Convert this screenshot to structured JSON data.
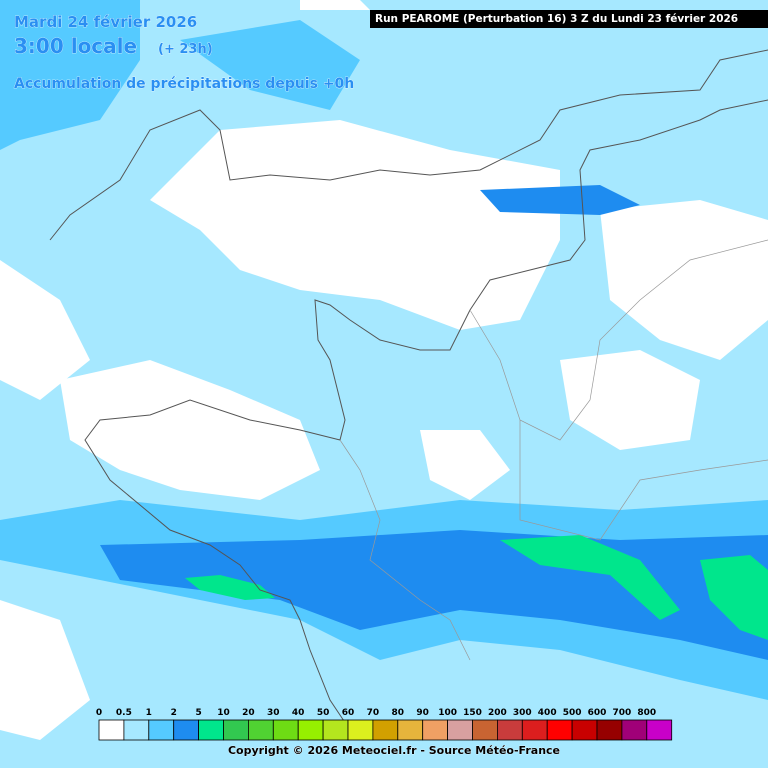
{
  "header": {
    "date": "Mardi 24 février 2026",
    "time": "3:00 locale",
    "offset": "(+ 23h)",
    "subtitle": "Accumulation de précipitations depuis +0h",
    "run": "Run PEAROME (Perturbation 16) 3 Z du Lundi 23 février 2026"
  },
  "legend": {
    "items": [
      {
        "label": "0",
        "color": "#ffffff"
      },
      {
        "label": "0.5",
        "color": "#a6e8ff"
      },
      {
        "label": "1",
        "color": "#55caff"
      },
      {
        "label": "2",
        "color": "#1e8cf0"
      },
      {
        "label": "5",
        "color": "#00e68c"
      },
      {
        "label": "10",
        "color": "#32c850"
      },
      {
        "label": "20",
        "color": "#50d232"
      },
      {
        "label": "30",
        "color": "#6edc14"
      },
      {
        "label": "40",
        "color": "#96f000"
      },
      {
        "label": "50",
        "color": "#b4e61e"
      },
      {
        "label": "60",
        "color": "#dcf01e"
      },
      {
        "label": "70",
        "color": "#d2a000"
      },
      {
        "label": "80",
        "color": "#e6b43c"
      },
      {
        "label": "90",
        "color": "#f0a064"
      },
      {
        "label": "100",
        "color": "#d8a0a0"
      },
      {
        "label": "150",
        "color": "#c86432"
      },
      {
        "label": "200",
        "color": "#c83c3c"
      },
      {
        "label": "300",
        "color": "#dc1e1e"
      },
      {
        "label": "400",
        "color": "#ff0000"
      },
      {
        "label": "500",
        "color": "#c80000"
      },
      {
        "label": "600",
        "color": "#960000"
      },
      {
        "label": "700",
        "color": "#a00078"
      },
      {
        "label": "800",
        "color": "#c800c8"
      }
    ]
  },
  "footer": {
    "copyright": "Copyright © 2026 Meteociel.fr - Source Météo-France"
  }
}
